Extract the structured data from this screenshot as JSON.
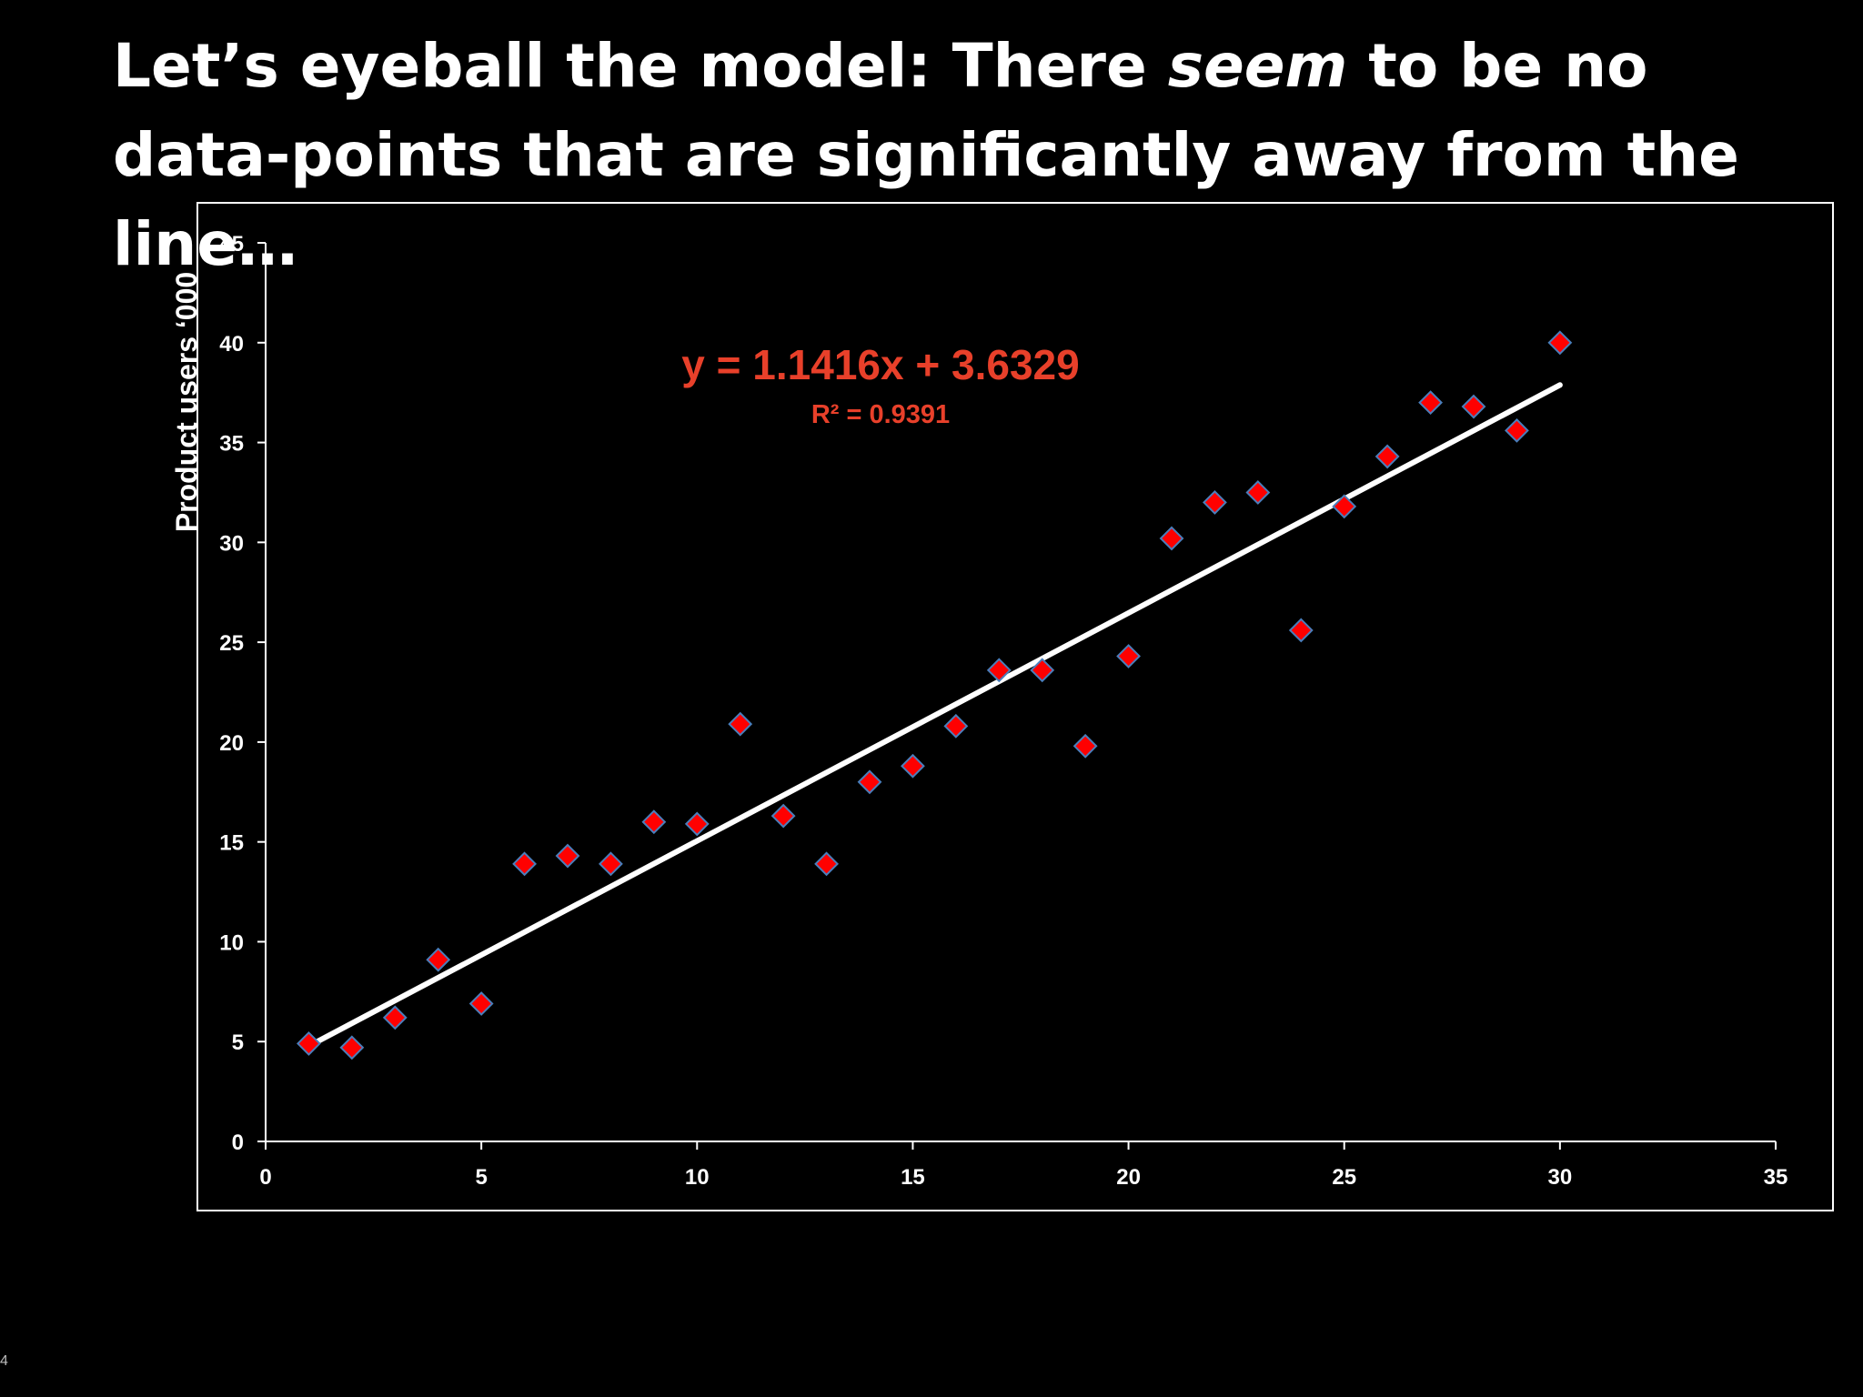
{
  "slide": {
    "title_before": "Let’s eyeball the model: There ",
    "title_emphasis": "seem",
    "title_after": " to be no data-points that are significantly away from the line…",
    "slide_number": "4"
  },
  "chart_data": {
    "type": "scatter",
    "title": "",
    "xlabel": "",
    "ylabel": "Product users ‘000",
    "xlim": [
      0,
      35
    ],
    "ylim": [
      0,
      45
    ],
    "xticks": [
      0,
      5,
      10,
      15,
      20,
      25,
      30,
      35
    ],
    "yticks": [
      0,
      5,
      10,
      15,
      20,
      25,
      30,
      35,
      40,
      45
    ],
    "grid": false,
    "legend": "none",
    "series": [
      {
        "marker": "diamond",
        "color": "#ff0000",
        "edge_color": "#4a7ebb",
        "x": [
          1,
          2,
          3,
          4,
          5,
          6,
          7,
          8,
          9,
          10,
          11,
          12,
          13,
          14,
          15,
          16,
          17,
          18,
          19,
          20,
          21,
          22,
          23,
          24,
          25,
          26,
          27,
          28,
          29,
          30
        ],
        "y": [
          4.9,
          4.7,
          6.2,
          9.1,
          6.9,
          13.9,
          14.3,
          13.9,
          16.0,
          15.9,
          20.9,
          16.3,
          13.9,
          18.0,
          18.8,
          20.8,
          23.6,
          23.6,
          19.8,
          24.3,
          30.2,
          32.0,
          32.5,
          25.6,
          31.8,
          34.3,
          37.0,
          36.8,
          35.6,
          40.0
        ]
      }
    ],
    "trendline": {
      "color": "#ffffff",
      "slope": 1.1416,
      "intercept": 3.6329,
      "x_range": [
        1,
        30
      ],
      "equation": "y = 1.1416x + 3.6329",
      "r_squared": "R² = 0.9391"
    }
  }
}
